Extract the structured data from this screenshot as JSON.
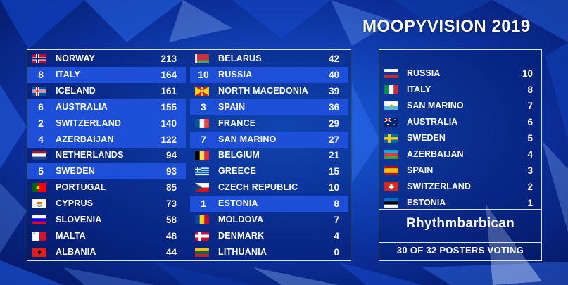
{
  "title": "MOOPYVISION 2019",
  "scoreboard": {
    "left": [
      {
        "name": "NORWAY",
        "score": "213",
        "points": "",
        "flag": "norway",
        "highlight": false
      },
      {
        "name": "ITALY",
        "score": "164",
        "points": "8",
        "flag": "italy",
        "highlight": true
      },
      {
        "name": "ICELAND",
        "score": "161",
        "points": "",
        "flag": "iceland",
        "highlight": false
      },
      {
        "name": "AUSTRALIA",
        "score": "155",
        "points": "6",
        "flag": "australia",
        "highlight": true
      },
      {
        "name": "SWITZERLAND",
        "score": "140",
        "points": "2",
        "flag": "switzerland",
        "highlight": true
      },
      {
        "name": "AZERBAIJAN",
        "score": "122",
        "points": "4",
        "flag": "azerbaijan",
        "highlight": true
      },
      {
        "name": "NETHERLANDS",
        "score": "94",
        "points": "",
        "flag": "netherlands",
        "highlight": false
      },
      {
        "name": "SWEDEN",
        "score": "93",
        "points": "5",
        "flag": "sweden",
        "highlight": true
      },
      {
        "name": "PORTUGAL",
        "score": "85",
        "points": "",
        "flag": "portugal",
        "highlight": false
      },
      {
        "name": "CYPRUS",
        "score": "73",
        "points": "",
        "flag": "cyprus",
        "highlight": false
      },
      {
        "name": "SLOVENIA",
        "score": "58",
        "points": "",
        "flag": "slovenia",
        "highlight": false
      },
      {
        "name": "MALTA",
        "score": "48",
        "points": "",
        "flag": "malta",
        "highlight": false
      },
      {
        "name": "ALBANIA",
        "score": "44",
        "points": "",
        "flag": "albania",
        "highlight": false
      }
    ],
    "right": [
      {
        "name": "BELARUS",
        "score": "42",
        "points": "",
        "flag": "belarus",
        "highlight": false
      },
      {
        "name": "RUSSIA",
        "score": "40",
        "points": "10",
        "flag": "russia",
        "highlight": true
      },
      {
        "name": "NORTH MACEDONIA",
        "score": "39",
        "points": "",
        "flag": "north-macedonia",
        "highlight": false
      },
      {
        "name": "SPAIN",
        "score": "36",
        "points": "3",
        "flag": "spain",
        "highlight": true
      },
      {
        "name": "FRANCE",
        "score": "29",
        "points": "",
        "flag": "france",
        "highlight": false
      },
      {
        "name": "SAN MARINO",
        "score": "27",
        "points": "7",
        "flag": "san-marino",
        "highlight": true
      },
      {
        "name": "BELGIUM",
        "score": "21",
        "points": "",
        "flag": "belgium",
        "highlight": false
      },
      {
        "name": "GREECE",
        "score": "15",
        "points": "",
        "flag": "greece",
        "highlight": false
      },
      {
        "name": "CZECH REPUBLIC",
        "score": "10",
        "points": "",
        "flag": "czech-republic",
        "highlight": false
      },
      {
        "name": "ESTONIA",
        "score": "8",
        "points": "1",
        "flag": "estonia",
        "highlight": true
      },
      {
        "name": "MOLDOVA",
        "score": "7",
        "points": "",
        "flag": "moldova",
        "highlight": false
      },
      {
        "name": "DENMARK",
        "score": "4",
        "points": "",
        "flag": "denmark",
        "highlight": false
      },
      {
        "name": "LITHUANIA",
        "score": "0",
        "points": "",
        "flag": "lithuania",
        "highlight": false
      }
    ]
  },
  "votes": {
    "items": [
      {
        "name": "RUSSIA",
        "points": "10",
        "flag": "russia"
      },
      {
        "name": "ITALY",
        "points": "8",
        "flag": "italy"
      },
      {
        "name": "SAN MARINO",
        "points": "7",
        "flag": "san-marino"
      },
      {
        "name": "AUSTRALIA",
        "points": "6",
        "flag": "australia"
      },
      {
        "name": "SWEDEN",
        "points": "5",
        "flag": "sweden"
      },
      {
        "name": "AZERBAIJAN",
        "points": "4",
        "flag": "azerbaijan"
      },
      {
        "name": "SPAIN",
        "points": "3",
        "flag": "spain"
      },
      {
        "name": "SWITZERLAND",
        "points": "2",
        "flag": "switzerland"
      },
      {
        "name": "ESTONIA",
        "points": "1",
        "flag": "estonia"
      }
    ],
    "voter": "Rhythmbarbican",
    "counter": "30 OF 32 POSTERS VOTING"
  },
  "colors": {
    "background": "#0a2a8a",
    "highlight": "#1e4fd9",
    "border": "#d8e4ff",
    "text": "#ffffff"
  }
}
